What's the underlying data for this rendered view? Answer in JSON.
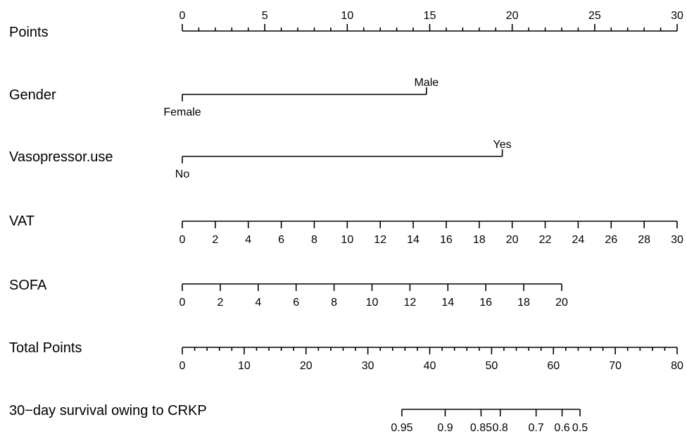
{
  "chart_data": {
    "type": "nomogram",
    "title": "",
    "points_range": [
      0,
      30
    ],
    "rows": [
      {
        "name": "Points",
        "kind": "scale",
        "label_side": "above",
        "labels": [
          "0",
          "5",
          "10",
          "15",
          "20",
          "25",
          "30"
        ],
        "ticks": [
          0,
          5,
          10,
          15,
          20,
          25,
          30
        ],
        "minor_step": 1,
        "scale_min": 0,
        "scale_max": 30
      },
      {
        "name": "Gender",
        "kind": "categorical",
        "levels": [
          {
            "label": "Female",
            "points": 0,
            "side": "below"
          },
          {
            "label": "Male",
            "points": 14.8,
            "side": "above"
          }
        ]
      },
      {
        "name": "Vasopressor.use",
        "kind": "categorical",
        "levels": [
          {
            "label": "No",
            "points": 0,
            "side": "below"
          },
          {
            "label": "Yes",
            "points": 19.4,
            "side": "above"
          }
        ]
      },
      {
        "name": "VAT",
        "kind": "scale",
        "label_side": "below",
        "labels": [
          "0",
          "2",
          "4",
          "6",
          "8",
          "10",
          "12",
          "14",
          "16",
          "18",
          "20",
          "22",
          "24",
          "26",
          "28",
          "30"
        ],
        "ticks": [
          0,
          2,
          4,
          6,
          8,
          10,
          12,
          14,
          16,
          18,
          20,
          22,
          24,
          26,
          28,
          30
        ],
        "minor_step": null,
        "scale_min": 0,
        "scale_max": 30,
        "points_min": 0,
        "points_max": 30
      },
      {
        "name": "SOFA",
        "kind": "scale",
        "label_side": "below",
        "labels": [
          "0",
          "2",
          "4",
          "6",
          "8",
          "10",
          "12",
          "14",
          "16",
          "18",
          "20"
        ],
        "ticks": [
          0,
          2,
          4,
          6,
          8,
          10,
          12,
          14,
          16,
          18,
          20
        ],
        "minor_step": null,
        "scale_min": 0,
        "scale_max": 20,
        "points_min": 0,
        "points_max": 23
      },
      {
        "name": "Total Points",
        "kind": "scale",
        "label_side": "below",
        "labels": [
          "0",
          "10",
          "20",
          "30",
          "40",
          "50",
          "60",
          "70",
          "80"
        ],
        "ticks": [
          0,
          10,
          20,
          30,
          40,
          50,
          60,
          70,
          80
        ],
        "minor_step": 2,
        "scale_min": 0,
        "scale_max": 80,
        "points_min": 0,
        "points_max": 30
      },
      {
        "name": "30−day survival owing to CRKP",
        "kind": "probability",
        "label_side": "below",
        "labels": [
          "0.95",
          "0.9",
          "0.85",
          "0.8",
          "0.7",
          "0.6",
          "0.5"
        ],
        "total_points": [
          35.5,
          42.5,
          48.3,
          51.4,
          57.2,
          61.4,
          64.3
        ]
      }
    ]
  }
}
